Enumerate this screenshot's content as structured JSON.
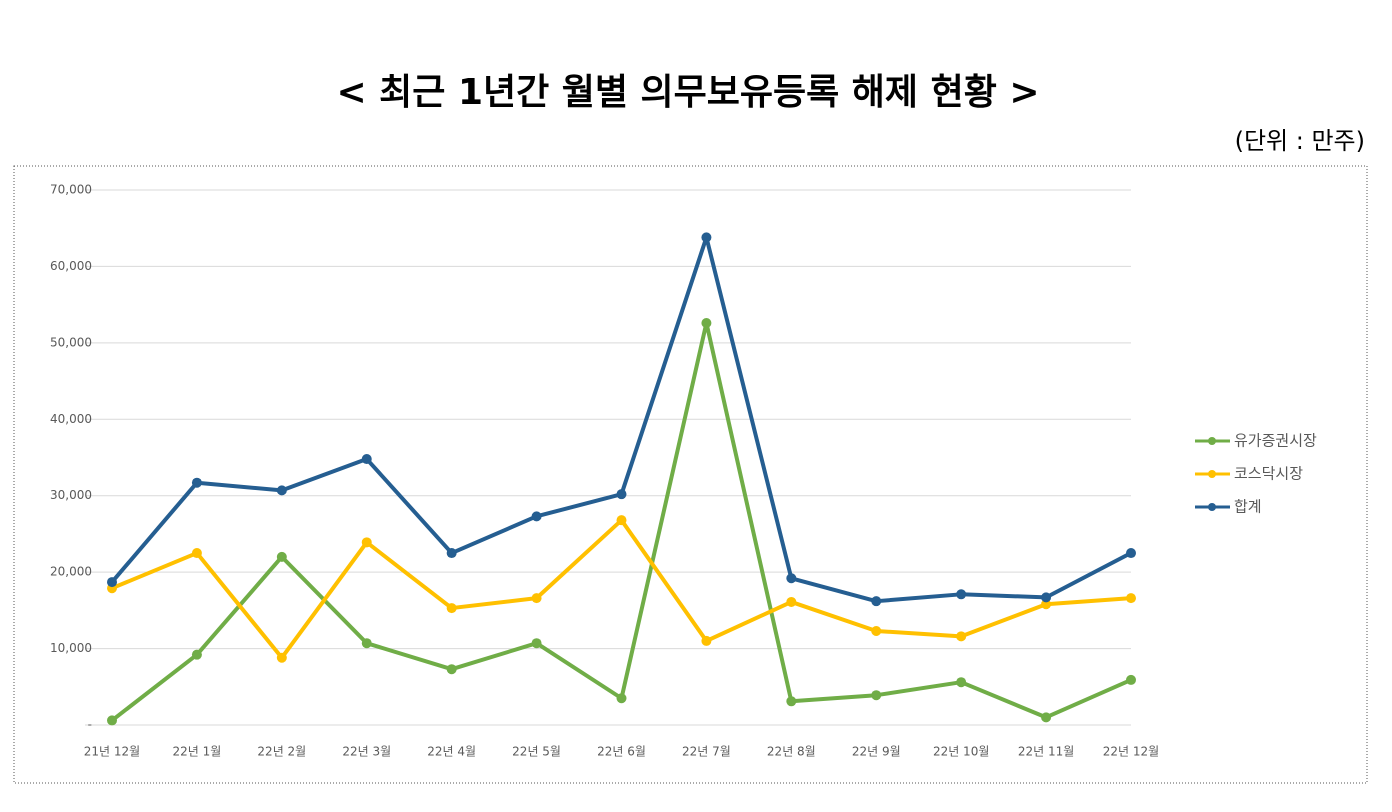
{
  "chart_data": {
    "type": "line",
    "title": "< 최근 1년간 월별 의무보유등록 해제 현황 >",
    "subtitle": "(단위 : 만주)",
    "categories": [
      "21년 12월",
      "22년 1월",
      "22년 2월",
      "22년 3월",
      "22년 4월",
      "22년 5월",
      "22년 6월",
      "22년 7월",
      "22년 8월",
      "22년 9월",
      "22년 10월",
      "22년 11월",
      "22년 12월"
    ],
    "series": [
      {
        "name": "유가증권시장",
        "color": "#70ad47",
        "values": [
          600,
          9200,
          22000,
          10700,
          7300,
          10700,
          3500,
          52600,
          3100,
          3900,
          5600,
          1000,
          5900
        ]
      },
      {
        "name": "코스닥시장",
        "color": "#ffc000",
        "values": [
          17900,
          22500,
          8800,
          23900,
          15300,
          16600,
          26800,
          11000,
          16100,
          12300,
          11600,
          15800,
          16600
        ]
      },
      {
        "name": "합계",
        "color": "#255e91",
        "values": [
          18700,
          31700,
          30700,
          34800,
          22500,
          27300,
          30200,
          63800,
          19200,
          16200,
          17100,
          16700,
          22500
        ]
      }
    ],
    "ylim": [
      0,
      70000
    ],
    "yticks": [
      {
        "value": 0,
        "label": "-"
      },
      {
        "value": 10000,
        "label": "10,000"
      },
      {
        "value": 20000,
        "label": "20,000"
      },
      {
        "value": 30000,
        "label": "30,000"
      },
      {
        "value": 40000,
        "label": "40,000"
      },
      {
        "value": 50000,
        "label": "50,000"
      },
      {
        "value": 60000,
        "label": "60,000"
      },
      {
        "value": 70000,
        "label": "70,000"
      }
    ],
    "grid": true,
    "legend": "right"
  }
}
